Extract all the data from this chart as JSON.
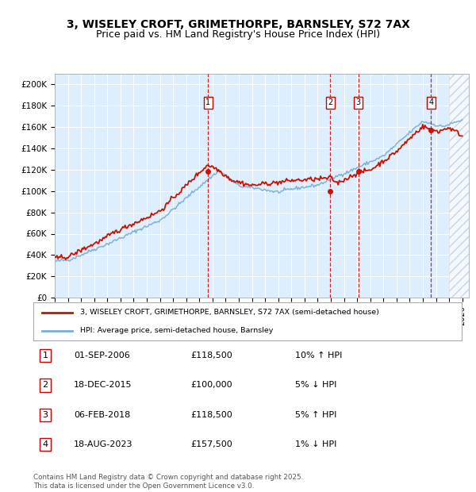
{
  "title": "3, WISELEY CROFT, GRIMETHORPE, BARNSLEY, S72 7AX",
  "subtitle": "Price paid vs. HM Land Registry's House Price Index (HPI)",
  "xlim_start": 1995.0,
  "xlim_end": 2026.5,
  "ylim": [
    0,
    210000
  ],
  "yticks": [
    0,
    20000,
    40000,
    60000,
    80000,
    100000,
    120000,
    140000,
    160000,
    180000,
    200000
  ],
  "ytick_labels": [
    "£0",
    "£20K",
    "£40K",
    "£60K",
    "£80K",
    "£100K",
    "£120K",
    "£140K",
    "£160K",
    "£180K",
    "£200K"
  ],
  "background_color": "#ddeeff",
  "hpi_color": "#7aafd4",
  "price_color": "#cc1100",
  "transaction_dates": [
    2006.67,
    2015.96,
    2018.09,
    2023.63
  ],
  "transaction_prices": [
    118500,
    100000,
    118500,
    157500
  ],
  "transaction_labels": [
    "1",
    "2",
    "3",
    "4"
  ],
  "vline_color": "#cc0000",
  "legend_label_price": "3, WISELEY CROFT, GRIMETHORPE, BARNSLEY, S72 7AX (semi-detached house)",
  "legend_label_hpi": "HPI: Average price, semi-detached house, Barnsley",
  "table_data": [
    [
      "1",
      "01-SEP-2006",
      "£118,500",
      "10% ↑ HPI"
    ],
    [
      "2",
      "18-DEC-2015",
      "£100,000",
      "5% ↓ HPI"
    ],
    [
      "3",
      "06-FEB-2018",
      "£118,500",
      "5% ↑ HPI"
    ],
    [
      "4",
      "18-AUG-2023",
      "£157,500",
      "1% ↓ HPI"
    ]
  ],
  "footer": "Contains HM Land Registry data © Crown copyright and database right 2025.\nThis data is licensed under the Open Government Licence v3.0.",
  "hatched_region_start": 2025.0,
  "title_fontsize": 10,
  "subtitle_fontsize": 9,
  "tick_fontsize": 7.5
}
